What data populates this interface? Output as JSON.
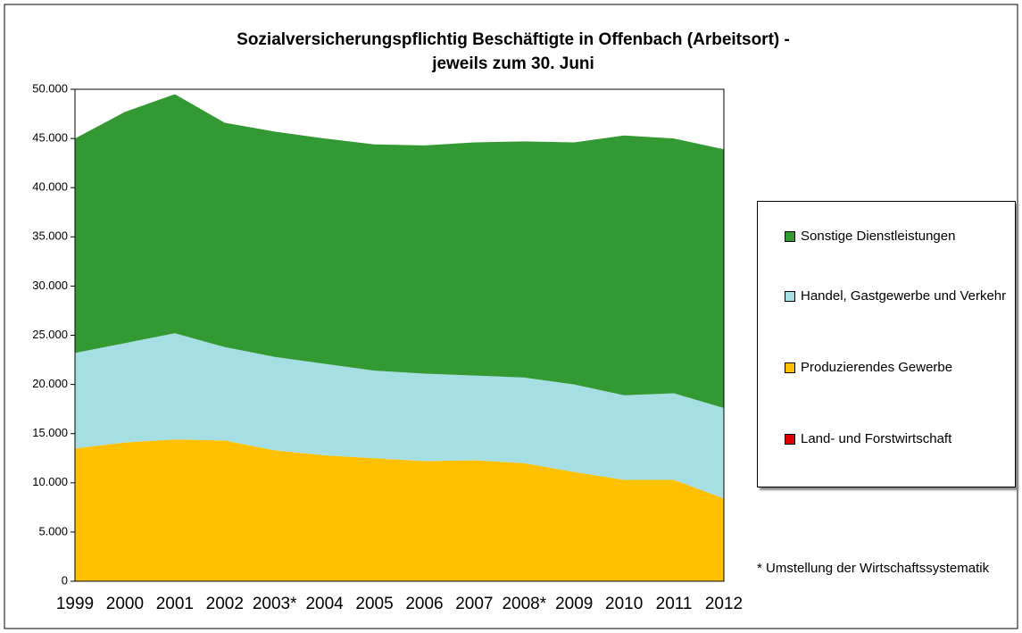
{
  "chart_data": {
    "type": "stacked_area",
    "title": "Sozialversicherungspflichtig Beschäftigte in Offenbach (Arbeitsort) -",
    "subtitle": "jeweils zum 30. Juni",
    "note": "* Umstellung der Wirtschaftssystematik",
    "categories": [
      "1999",
      "2000",
      "2001",
      "2002",
      "2003*",
      "2004",
      "2005",
      "2006",
      "2007",
      "2008*",
      "2009",
      "2010",
      "2011",
      "2012"
    ],
    "series": [
      {
        "name": "Land- und Forstwirtschaft",
        "color": "#e00000",
        "values": [
          0,
          0,
          0,
          0,
          0,
          0,
          0,
          0,
          0,
          0,
          0,
          0,
          0,
          0
        ]
      },
      {
        "name": "Produzierendes Gewerbe",
        "color": "#ffc000",
        "values": [
          13500,
          14100,
          14400,
          14300,
          13300,
          12800,
          12500,
          12200,
          12300,
          12000,
          11100,
          10300,
          10300,
          8400
        ]
      },
      {
        "name": "Handel, Gastgewerbe und Verkehr",
        "color": "#a6dfe3",
        "values": [
          9700,
          10100,
          10800,
          9500,
          9500,
          9300,
          8900,
          8900,
          8600,
          8700,
          8900,
          8600,
          8800,
          9200
        ]
      },
      {
        "name": "Sonstige Dienstleistungen",
        "color": "#339933",
        "values": [
          21800,
          23500,
          24300,
          22800,
          22900,
          22900,
          23000,
          23200,
          23700,
          24000,
          24600,
          26400,
          25900,
          26300
        ]
      }
    ],
    "ylim": [
      0,
      50000
    ],
    "yticks": [
      0,
      {
        "value": 5000,
        "label": "5.000"
      },
      {
        "value": 10000,
        "label": "10.000"
      },
      {
        "value": 15000,
        "label": "15.000"
      },
      {
        "value": 20000,
        "label": "20.000"
      },
      {
        "value": 25000,
        "label": "25.000"
      },
      {
        "value": 30000,
        "label": "30.000"
      },
      {
        "value": 35000,
        "label": "35.000"
      },
      {
        "value": 40000,
        "label": "40.000"
      },
      {
        "value": 45000,
        "label": "45.000"
      },
      {
        "value": 50000,
        "label": "50.000"
      }
    ],
    "legend": "right"
  }
}
